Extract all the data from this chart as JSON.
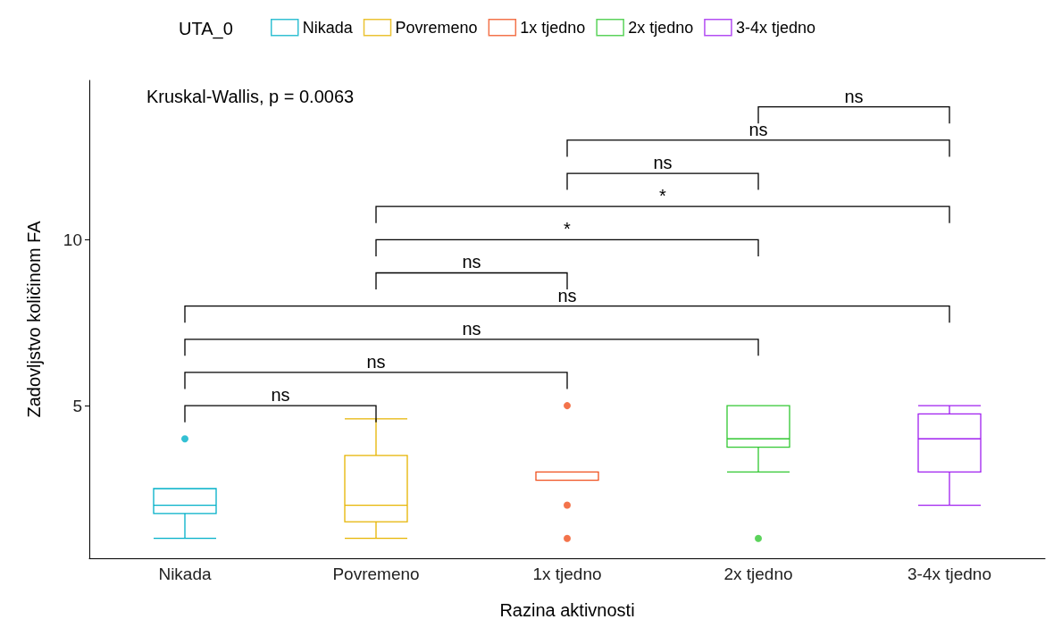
{
  "chart_data": {
    "type": "box",
    "xlabel": "Razina aktivnosti",
    "ylabel": "Zadovljstvo količinom FA",
    "legend_title": "UTA_0",
    "categories": [
      "Nikada",
      "Povremeno",
      "1x tjedno",
      "2x tjedno",
      "3-4x tjedno"
    ],
    "series": [
      {
        "name": "Nikada",
        "color": "#00b0c8",
        "boxes": [
          {
            "low": 1,
            "q1": 1.75,
            "median": 2,
            "q3": 2.5,
            "high": 2.5,
            "outliers": [
              4
            ]
          },
          null,
          null,
          null,
          null
        ]
      },
      {
        "name": "Povremeno",
        "color": "#e6b400",
        "boxes": [
          null,
          {
            "low": 1,
            "q1": 1.5,
            "median": 2,
            "q3": 3.5,
            "high": 4.6
          },
          null,
          null,
          null
        ]
      },
      {
        "name": "1x tjedno",
        "color": "#f0501e",
        "boxes": [
          null,
          null,
          {
            "low": 2.75,
            "q1": 2.75,
            "median": 3,
            "q3": 3,
            "high": 3,
            "outliers": [
              5,
              2,
              1
            ]
          },
          null,
          null
        ]
      },
      {
        "name": "2x tjedno",
        "color": "#32c832",
        "boxes": [
          null,
          null,
          null,
          {
            "low": 3,
            "q1": 3.75,
            "median": 4,
            "q3": 5,
            "high": 5,
            "outliers": [
              1
            ]
          },
          null
        ]
      },
      {
        "name": "3-4x tjedno",
        "color": "#a020f0",
        "boxes": [
          null,
          null,
          null,
          null,
          {
            "low": 2,
            "q1": 3,
            "median": 4,
            "q3": 4.75,
            "high": 5
          }
        ]
      }
    ],
    "ylim": [
      0.4,
      14.8
    ],
    "yticks": [
      5,
      10
    ],
    "grid": false,
    "legend": "top",
    "annotations": [
      "Kruskal-Wallis, p = 0.0063",
      "ns",
      "ns",
      "ns",
      "ns",
      "ns",
      "*",
      "*",
      "ns",
      "ns",
      "ns"
    ]
  }
}
